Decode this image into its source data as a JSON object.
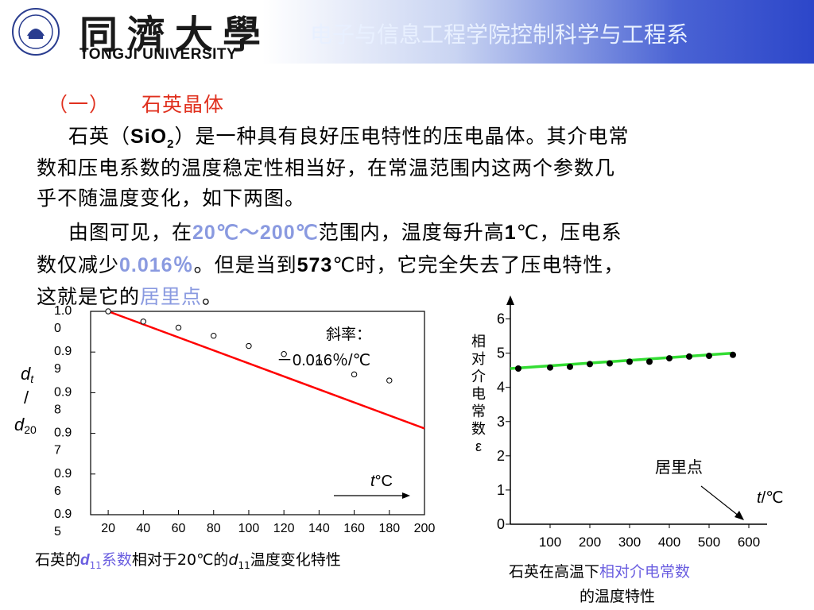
{
  "header": {
    "logo_cn": "同濟大學",
    "logo_en": "TONGJI UNIVERSITY",
    "department": "电子与信息工程学院控制科学与工程系"
  },
  "section": {
    "number": "（一）",
    "title": "石英晶体"
  },
  "paragraph1": {
    "prefix": "石英（",
    "formula_base": "SiO",
    "formula_sub": "2",
    "rest1": "）是一种具有良好压电特性的压电晶体。其介电常",
    "line2": "数和压电系数的温度稳定性相当好，在常温范围内这两个参数几",
    "line3": "乎不随温度变化，如下两图。"
  },
  "paragraph2": {
    "p1": "由图可见，在",
    "range": "20℃～200℃",
    "p2": "范围内，温度每升高",
    "one": "1",
    "p3": "℃，压电系",
    "p4": "数仅减少",
    "decrease": "0.016％",
    "p5": "。但是当到",
    "curie_value": "573",
    "p6": "℃时，它完全失去了压电特性，",
    "p7": "这就是它的",
    "curie_point": "居里点",
    "p8": "。"
  },
  "chart_left": {
    "annotation_line1": "斜率：",
    "annotation_line2": "－0.016％/℃",
    "t_symbol": "t",
    "t_unit": "°C",
    "ylabel_top": "d",
    "ylabel_top_sub": "t",
    "ylabel_slash": "/",
    "ylabel_bottom": "d",
    "ylabel_bottom_sub": "20",
    "caption_p1": "石英的",
    "caption_d": "d",
    "caption_sub": "11",
    "caption_p2": "系数",
    "caption_p3": "相对于20℃的",
    "caption_d2": "d",
    "caption_sub2": "11",
    "caption_p4": "温度变化特性"
  },
  "chart_right": {
    "ylabel": [
      "相",
      "对",
      "介",
      "电",
      "常",
      "数",
      "ε"
    ],
    "annotation": "居里点",
    "t_symbol": "t",
    "t_unit": "/℃",
    "caption_p1": "石英在高温下",
    "caption_hl": "相对介电常数",
    "caption_p2": "的温度特性"
  },
  "colors": {
    "accent_red": "#e0301e",
    "highlight": "#8a9ae0",
    "fit_line_right": "#33dd33",
    "fit_line_left": "#ff0000"
  },
  "chart_data": [
    {
      "type": "scatter",
      "x": [
        20,
        40,
        60,
        80,
        100,
        120,
        140,
        160,
        180
      ],
      "y": [
        1.0,
        0.9975,
        0.996,
        0.994,
        0.9915,
        0.9895,
        0.9875,
        0.9845,
        0.983
      ],
      "fit_line": {
        "x": [
          20,
          200
        ],
        "y": [
          1.0,
          0.9712
        ]
      },
      "x_ticks": [
        "20",
        "40",
        "60",
        "80",
        "100",
        "120",
        "140",
        "160",
        "180",
        "200"
      ],
      "y_ticks": [
        [
          "1.0",
          "0"
        ],
        [
          "0.9",
          "9"
        ],
        [
          "0.9",
          "8"
        ],
        [
          "0.9",
          "7"
        ],
        [
          "0.9",
          "6"
        ],
        [
          "0.9",
          "5"
        ]
      ],
      "y_tick_values": [
        1.0,
        0.99,
        0.98,
        0.97,
        0.96,
        0.95
      ],
      "xlim": [
        10,
        200
      ],
      "ylim": [
        0.95,
        1.0
      ],
      "grid": false
    },
    {
      "type": "scatter",
      "x": [
        20,
        100,
        150,
        200,
        250,
        300,
        350,
        400,
        450,
        500,
        560
      ],
      "y": [
        4.55,
        4.58,
        4.6,
        4.68,
        4.7,
        4.75,
        4.75,
        4.85,
        4.9,
        4.92,
        4.95
      ],
      "fit_line": {
        "x": [
          0,
          560
        ],
        "y": [
          4.55,
          5.0
        ]
      },
      "x_ticks": [
        "100",
        "200",
        "300",
        "400",
        "500",
        "600"
      ],
      "x_tick_values": [
        100,
        200,
        300,
        400,
        500,
        600
      ],
      "y_ticks": [
        "0",
        "1",
        "2",
        "3",
        "4",
        "5",
        "6"
      ],
      "xlim": [
        0,
        600
      ],
      "ylim": [
        0,
        6.5
      ],
      "grid": false
    }
  ]
}
